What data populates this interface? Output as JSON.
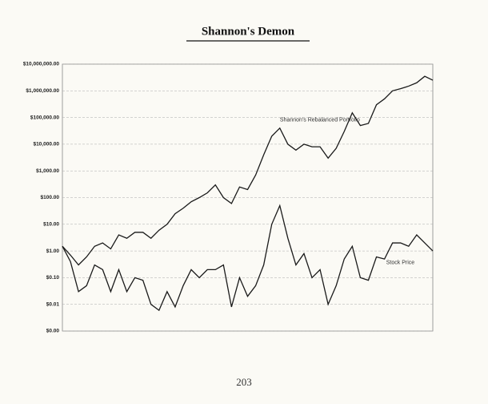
{
  "chart_data": {
    "type": "line",
    "title": "Shannon's Demon",
    "log_y": true,
    "grid": true,
    "categories": [
      null,
      null,
      null,
      null,
      null,
      null,
      null,
      null,
      null,
      null,
      null,
      null,
      null,
      null,
      null,
      null,
      null,
      null,
      null,
      null,
      null,
      null,
      null,
      null,
      null,
      null,
      null,
      null,
      null,
      null,
      null,
      null,
      null,
      null,
      null,
      null,
      null,
      null,
      null,
      null,
      null,
      null,
      null,
      null,
      null,
      null,
      null
    ],
    "series": [
      {
        "color": "#1a1a1a",
        "values": [
          1.5,
          0.7,
          0.3,
          0.6,
          1.5,
          2,
          1.2,
          4,
          3,
          5,
          5,
          3,
          6,
          10,
          25,
          40,
          70,
          100,
          150,
          300,
          100,
          60,
          250,
          200,
          700,
          4000,
          20000,
          40000,
          10000,
          6000,
          10000,
          8000,
          8000,
          3000,
          7000,
          30000,
          150000,
          50000,
          60000,
          300000,
          500000,
          1000000,
          1200000,
          1500000,
          2000000,
          3500000,
          2500000
        ]
      },
      {
        "color": "#1a1a1a",
        "values": [
          1.5,
          0.4,
          0.03,
          0.05,
          0.3,
          0.2,
          0.03,
          0.2,
          0.03,
          0.1,
          0.08,
          0.01,
          0.006,
          0.03,
          0.008,
          0.05,
          0.2,
          0.1,
          0.2,
          0.2,
          0.3,
          0.008,
          0.1,
          0.02,
          0.05,
          0.3,
          10,
          50,
          3,
          0.3,
          0.8,
          0.1,
          0.2,
          0.01,
          0.05,
          0.5,
          1.5,
          0.1,
          0.08,
          0.6,
          0.5,
          2,
          2,
          1.5,
          4,
          2,
          1
        ]
      }
    ],
    "annotations": [
      {
        "text": "Shannon's Rebalanced Portfolio",
        "series": 0
      },
      {
        "text": "Stock Price",
        "series": 1
      }
    ],
    "ylim": [
      0.001,
      10000000
    ],
    "yticks": [
      {
        "value": 10000000,
        "label": "$10,000,000.00"
      },
      {
        "value": 1000000,
        "label": "$1,000,000.00"
      },
      {
        "value": 100000,
        "label": "$100,000.00"
      },
      {
        "value": 10000,
        "label": "$10,000.00"
      },
      {
        "value": 1000,
        "label": "$1,000.00"
      },
      {
        "value": 100,
        "label": "$100.00"
      },
      {
        "value": 10,
        "label": "$10.00"
      },
      {
        "value": 1,
        "label": "$1.00"
      },
      {
        "value": 0.1,
        "label": "$0.10"
      },
      {
        "value": 0.01,
        "label": "$0.01"
      },
      {
        "value": 0.001,
        "label": "$0.00"
      }
    ]
  },
  "page": {
    "number": "203"
  }
}
